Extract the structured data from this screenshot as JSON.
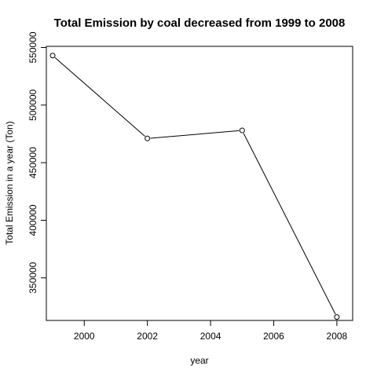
{
  "chart_data": {
    "type": "line",
    "title": "Total Emission by coal decreased from 1999 to 2008",
    "xlabel": "year",
    "ylabel": "Total Emission in a year (Ton)",
    "x": [
      1999,
      2002,
      2005,
      2008
    ],
    "series": [
      {
        "values": [
          543000,
          471000,
          478000,
          316000
        ]
      }
    ],
    "xlim": [
      1998.8,
      2008.5
    ],
    "ylim": [
      313000,
      551000
    ],
    "x_ticks": [
      2000,
      2002,
      2004,
      2006,
      2008
    ],
    "y_ticks": [
      350000,
      400000,
      450000,
      500000,
      550000
    ],
    "x_tick_labels": [
      "2000",
      "2002",
      "2004",
      "2006",
      "2008"
    ],
    "y_tick_labels": [
      "350000",
      "400000",
      "450000",
      "500000",
      "550000"
    ],
    "grid": false,
    "markers": "open-circle",
    "line_color": "#000000"
  }
}
